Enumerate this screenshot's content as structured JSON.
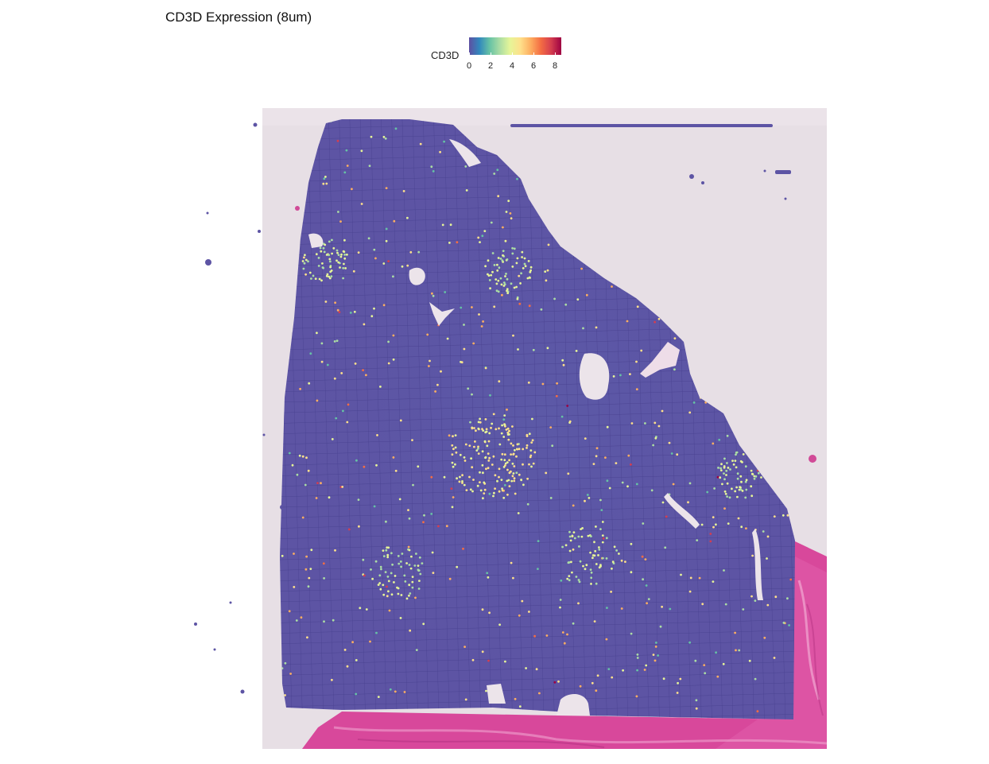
{
  "chart_data": {
    "type": "heatmap",
    "title": "CD3D Expression (8um)",
    "legend": {
      "title": "CD3D",
      "position": "top-center",
      "min": 0,
      "max": 8.8,
      "ticks": [
        "0",
        "2",
        "4",
        "6",
        "8"
      ],
      "palette": [
        "#5e4fa2",
        "#3288bd",
        "#66c2a5",
        "#abdda4",
        "#e6f598",
        "#fee08b",
        "#fdae61",
        "#f46d43",
        "#d53e4f",
        "#9e0142"
      ]
    },
    "colors": {
      "background_tissue": "#e6dde3",
      "base_spot": "#5d54a4",
      "he_stain": "#d9479b",
      "grid_line": "#463f8e"
    },
    "hotspots": [
      {
        "name": "central cluster",
        "level": 4.5
      },
      {
        "name": "upper-left cluster",
        "level": 3.5
      },
      {
        "name": "upper-mid cluster",
        "level": 3.5
      },
      {
        "name": "lower-left cluster",
        "level": 3.5
      },
      {
        "name": "lower-right cluster",
        "level": 3.5
      },
      {
        "name": "right-edge cluster",
        "level": 3.5
      }
    ]
  }
}
